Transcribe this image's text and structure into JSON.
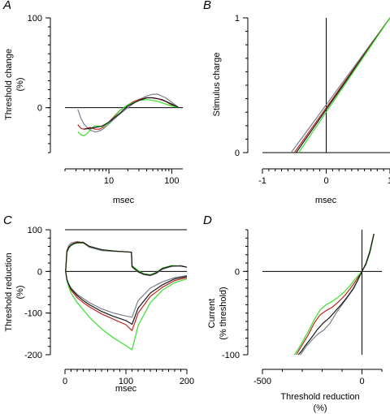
{
  "colors": {
    "axis": "#000000",
    "grey": "#7a7f8e",
    "red": "#c0251f",
    "green": "#39e02e",
    "black": "#1a1a1a"
  },
  "chart_data": [
    {
      "panel": "A",
      "type": "line",
      "xscale": "log",
      "xlabel": "msec",
      "ylabel_lines": [
        "Threshold change",
        "(%)"
      ],
      "xlim": [
        2,
        150
      ],
      "ylim": [
        -50,
        100
      ],
      "xticks": [
        10,
        100
      ],
      "yticks": [
        0,
        100
      ],
      "zero_line": true,
      "series": [
        {
          "color": "grey",
          "x": [
            3.2,
            3.6,
            4,
            4.5,
            5,
            5.5,
            6,
            7,
            8,
            10,
            12,
            15,
            20,
            25,
            30,
            40,
            50,
            60,
            80,
            100,
            130
          ],
          "y": [
            -2,
            -12,
            -18,
            -22,
            -25,
            -26,
            -27,
            -26,
            -24,
            -18,
            -13,
            -7,
            0,
            5,
            9,
            13,
            15,
            15,
            11,
            6,
            0
          ]
        },
        {
          "color": "red",
          "x": [
            3.2,
            3.6,
            4,
            4.5,
            5,
            5.5,
            6,
            7,
            8,
            10,
            12,
            15,
            20,
            25,
            30,
            40,
            50,
            60,
            80,
            100,
            130
          ],
          "y": [
            -19,
            -23,
            -24,
            -23,
            -22,
            -23,
            -24,
            -24,
            -22,
            -16,
            -10,
            -3,
            3,
            7,
            9,
            11,
            11,
            10,
            7,
            3,
            0
          ]
        },
        {
          "color": "green",
          "x": [
            3.2,
            3.6,
            4,
            4.5,
            5,
            5.5,
            6,
            7,
            8,
            10,
            12,
            15,
            20,
            25,
            30,
            40,
            50,
            60,
            80,
            100,
            130
          ],
          "y": [
            -27,
            -30,
            -31,
            -29,
            -25,
            -22,
            -20,
            -21,
            -21,
            -17,
            -11,
            -3,
            3,
            6,
            8,
            9,
            8,
            7,
            4,
            2,
            0
          ]
        },
        {
          "color": "black",
          "x": [
            4,
            5,
            6,
            8,
            10,
            15,
            20,
            30,
            40,
            50,
            70,
            100,
            130
          ],
          "y": [
            -24,
            -23,
            -22,
            -20,
            -16,
            -6,
            2,
            8,
            11,
            11,
            9,
            4,
            0
          ]
        }
      ]
    },
    {
      "panel": "B",
      "type": "line",
      "xlabel": "msec",
      "ylabel": "Stimulus charge",
      "xlim": [
        -1,
        1
      ],
      "ylim": [
        0,
        1
      ],
      "xticks": [
        -1,
        0,
        1
      ],
      "yticks": [
        0,
        1
      ],
      "zero_line": true,
      "vertical_zero_line": true,
      "series": [
        {
          "color": "grey",
          "x": [
            -0.55,
            1.0
          ],
          "y": [
            0,
            1
          ]
        },
        {
          "color": "red",
          "x": [
            -0.5,
            1.0
          ],
          "y": [
            0,
            1
          ]
        },
        {
          "color": "black",
          "x": [
            -0.47,
            1.0
          ],
          "y": [
            0,
            1
          ]
        },
        {
          "color": "green",
          "x": [
            -0.43,
            1.0
          ],
          "y": [
            0,
            1
          ]
        }
      ]
    },
    {
      "panel": "C",
      "type": "line",
      "xlabel": "msec",
      "ylabel_lines": [
        "Threshold reduction",
        "(%)"
      ],
      "xlim": [
        0,
        200
      ],
      "ylim": [
        -200,
        100
      ],
      "xticks": [
        0,
        100,
        200
      ],
      "yticks": [
        -200,
        -100,
        0,
        100
      ],
      "zero_line": true,
      "reference_line_y": 100,
      "series": [
        {
          "color": "grey",
          "x": [
            1,
            3,
            6,
            10,
            15,
            20,
            30,
            40,
            60,
            80,
            100,
            109,
            110,
            120,
            130,
            140,
            150,
            160,
            175,
            190,
            200
          ],
          "y": [
            0,
            50,
            62,
            68,
            70,
            72,
            68,
            58,
            50,
            48,
            47,
            46,
            10,
            -2,
            -8,
            -10,
            -5,
            5,
            12,
            14,
            10
          ]
        },
        {
          "color": "red",
          "x": [
            1,
            3,
            6,
            10,
            15,
            20,
            30,
            40,
            60,
            80,
            100,
            109,
            110,
            120,
            130,
            140,
            150,
            160,
            175,
            190,
            200
          ],
          "y": [
            0,
            48,
            58,
            64,
            68,
            70,
            70,
            60,
            52,
            49,
            47,
            46,
            12,
            0,
            -7,
            -9,
            -3,
            7,
            13,
            13,
            10
          ]
        },
        {
          "color": "green",
          "x": [
            1,
            3,
            6,
            10,
            15,
            20,
            30,
            40,
            60,
            80,
            100,
            109,
            110,
            120,
            130,
            140,
            150,
            160,
            175,
            190,
            200
          ],
          "y": [
            0,
            45,
            55,
            62,
            66,
            68,
            68,
            60,
            52,
            49,
            47,
            46,
            14,
            2,
            -6,
            -8,
            -2,
            8,
            14,
            13,
            10
          ]
        },
        {
          "color": "black",
          "x": [
            1,
            3,
            6,
            10,
            15,
            20,
            30,
            40,
            60,
            80,
            100,
            109,
            110,
            120,
            130,
            140,
            150,
            160,
            175,
            190,
            200
          ],
          "y": [
            0,
            47,
            57,
            63,
            67,
            69,
            69,
            60,
            52,
            49,
            47,
            46,
            12,
            0,
            -7,
            -9,
            -3,
            7,
            13,
            13,
            10
          ]
        },
        {
          "color": "grey",
          "x": [
            1,
            3,
            6,
            10,
            20,
            30,
            40,
            60,
            80,
            100,
            110,
            120,
            140,
            160,
            180,
            200
          ],
          "y": [
            0,
            -18,
            -30,
            -40,
            -55,
            -65,
            -75,
            -90,
            -100,
            -107,
            -110,
            -70,
            -40,
            -25,
            -15,
            -10
          ]
        },
        {
          "color": "red",
          "x": [
            1,
            3,
            6,
            10,
            20,
            30,
            40,
            60,
            80,
            100,
            110,
            120,
            140,
            160,
            180,
            200
          ],
          "y": [
            0,
            -20,
            -33,
            -45,
            -63,
            -75,
            -85,
            -102,
            -115,
            -128,
            -142,
            -100,
            -60,
            -38,
            -22,
            -15
          ]
        },
        {
          "color": "green",
          "x": [
            1,
            3,
            6,
            10,
            20,
            30,
            40,
            60,
            80,
            100,
            110,
            120,
            140,
            160,
            180,
            200
          ],
          "y": [
            0,
            -22,
            -37,
            -52,
            -75,
            -92,
            -110,
            -138,
            -160,
            -178,
            -188,
            -130,
            -75,
            -45,
            -27,
            -18
          ]
        },
        {
          "color": "black",
          "x": [
            1,
            3,
            6,
            10,
            20,
            30,
            40,
            60,
            80,
            100,
            110,
            120,
            140,
            160,
            180,
            200
          ],
          "y": [
            0,
            -19,
            -31,
            -42,
            -58,
            -70,
            -80,
            -96,
            -108,
            -118,
            -127,
            -88,
            -52,
            -32,
            -18,
            -12
          ]
        }
      ]
    },
    {
      "panel": "D",
      "type": "line",
      "xlabel_lines": [
        "Threshold reduction",
        "(%)"
      ],
      "ylabel_lines": [
        "Current",
        "(% threshold)"
      ],
      "xlim": [
        -500,
        100
      ],
      "ylim": [
        -100,
        50
      ],
      "xticks": [
        -500,
        0
      ],
      "yticks": [
        -100,
        0
      ],
      "zero_line": true,
      "vertical_zero_line": true,
      "series": [
        {
          "color": "grey",
          "x": [
            -310,
            -300,
            -280,
            -250,
            -220,
            -190,
            -160,
            -130,
            -100,
            -70,
            -40,
            -20,
            0,
            20,
            40,
            60
          ],
          "y": [
            -100,
            -97,
            -90,
            -82,
            -75,
            -70,
            -62,
            -50,
            -40,
            -30,
            -20,
            -10,
            0,
            10,
            25,
            45
          ]
        },
        {
          "color": "red",
          "x": [
            -330,
            -320,
            -300,
            -270,
            -240,
            -210,
            -180,
            -150,
            -120,
            -90,
            -60,
            -30,
            0,
            20,
            40,
            60
          ],
          "y": [
            -100,
            -96,
            -88,
            -76,
            -62,
            -52,
            -47,
            -43,
            -37,
            -30,
            -21,
            -11,
            0,
            9,
            23,
            45
          ]
        },
        {
          "color": "green",
          "x": [
            -340,
            -325,
            -300,
            -270,
            -240,
            -210,
            -180,
            -150,
            -120,
            -90,
            -60,
            -30,
            0,
            20,
            40,
            60
          ],
          "y": [
            -100,
            -95,
            -85,
            -72,
            -58,
            -46,
            -40,
            -36,
            -31,
            -25,
            -17,
            -8,
            0,
            8,
            22,
            44
          ]
        },
        {
          "color": "black",
          "x": [
            -320,
            -305,
            -285,
            -255,
            -225,
            -195,
            -165,
            -135,
            -105,
            -75,
            -45,
            -20,
            0,
            20,
            40,
            60
          ],
          "y": [
            -100,
            -96,
            -89,
            -80,
            -70,
            -62,
            -56,
            -48,
            -40,
            -31,
            -21,
            -10,
            0,
            9,
            24,
            45
          ]
        }
      ]
    }
  ]
}
